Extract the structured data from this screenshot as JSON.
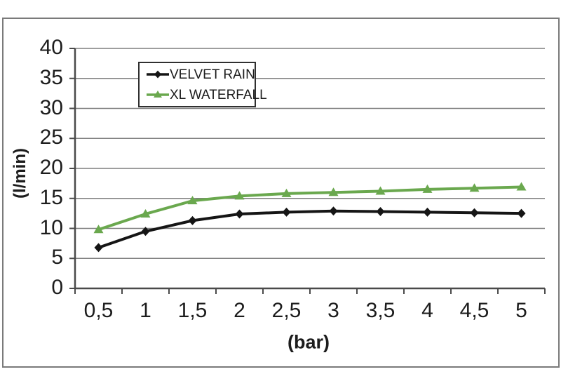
{
  "figure": {
    "background": "#ffffff",
    "frame_border_color": "#7a7a7a"
  },
  "chart_data": {
    "type": "line",
    "title": "",
    "xlabel": "(bar)",
    "ylabel": "(l/min)",
    "categories": [
      "0,5",
      "1",
      "1,5",
      "2",
      "2,5",
      "3",
      "3,5",
      "4",
      "4,5",
      "5"
    ],
    "x_numeric": [
      0.5,
      1,
      1.5,
      2,
      2.5,
      3,
      3.5,
      4,
      4.5,
      5
    ],
    "yticks": [
      0,
      5,
      10,
      15,
      20,
      25,
      30,
      35,
      40
    ],
    "ylim": [
      0,
      40
    ],
    "grid": "horizontal",
    "legend_position": "inside-top-left",
    "series": [
      {
        "name": "VELVET RAIN",
        "marker": "diamond",
        "color": "#151515",
        "values": [
          6.8,
          9.5,
          11.3,
          12.4,
          12.7,
          12.9,
          12.8,
          12.7,
          12.6,
          12.5
        ]
      },
      {
        "name": "XL WATERFALL",
        "marker": "triangle",
        "color": "#6aa84e",
        "values": [
          9.8,
          12.4,
          14.6,
          15.4,
          15.8,
          16.0,
          16.2,
          16.5,
          16.7,
          16.9
        ]
      }
    ],
    "colors": {
      "gridline": "#7e7e7e",
      "axis": "#4a4a4a",
      "text": "#1c1c1c",
      "legend_border": "#303030"
    }
  }
}
